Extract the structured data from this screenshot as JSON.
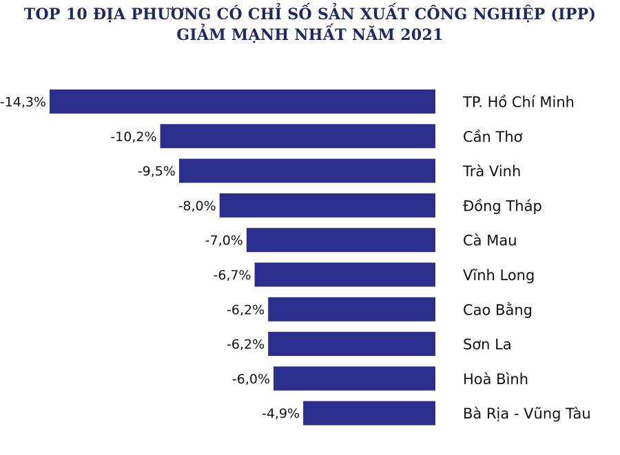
{
  "chart_data": {
    "type": "bar",
    "orientation": "horizontal",
    "title": "TOP 10 ĐỊA PHƯƠNG CÓ CHỈ SỐ SẢN XUẤT CÔNG NGHIỆP (IPP)",
    "subtitle": "GIẢM MẠNH NHẤT NĂM 2021",
    "categories": [
      "TP. Hồ Chí Minh",
      "Cần Thơ",
      "Trà Vinh",
      "Đồng Tháp",
      "Cà Mau",
      "Vĩnh Long",
      "Cao Bằng",
      "Sơn La",
      "Hoà Bình",
      "Bà Rịa - Vũng Tàu"
    ],
    "values": [
      -14.3,
      -10.2,
      -9.5,
      -8.0,
      -7.0,
      -6.7,
      -6.2,
      -6.2,
      -6.0,
      -4.9
    ],
    "data_labels": [
      "-14,3%",
      "-10,2%",
      "-9,5%",
      "-8,0%",
      "-7,0%",
      "-6,7%",
      "-6,2%",
      "-6,2%",
      "-6,0%",
      "-4,9%"
    ],
    "xlim": [
      -14.3,
      0
    ],
    "grid": false,
    "legend": "none",
    "bar_color": "#2b2e8c",
    "title_color": "#1f2866"
  }
}
